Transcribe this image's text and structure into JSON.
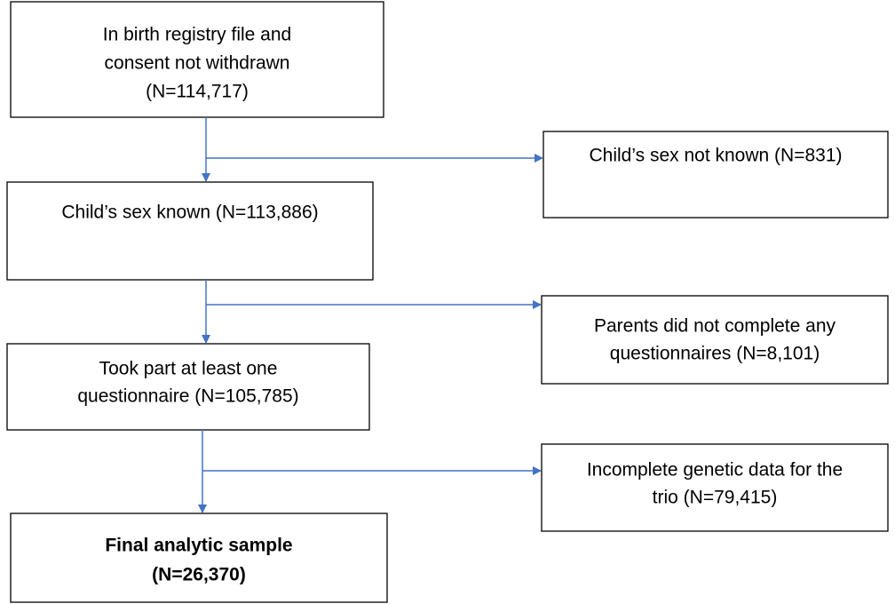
{
  "nodes": [
    {
      "lines": [
        "In birth registry file and",
        "consent not withdrawn",
        "(N=114,717)"
      ]
    },
    {
      "lines": [
        "Child’s sex known (N=113,886)"
      ]
    },
    {
      "lines": [
        "Took part at least one",
        "questionnaire (N=105,785)"
      ]
    },
    {
      "lines": [
        "Final analytic sample",
        "(N=26,370)"
      ]
    }
  ],
  "exclusions": [
    {
      "lines": [
        "Child’s sex not known (N=831)"
      ]
    },
    {
      "lines": [
        "Parents did not complete any",
        "questionnaires (N=8,101)"
      ]
    },
    {
      "lines": [
        "Incomplete genetic data for the",
        "trio (N=79,415)"
      ]
    }
  ]
}
